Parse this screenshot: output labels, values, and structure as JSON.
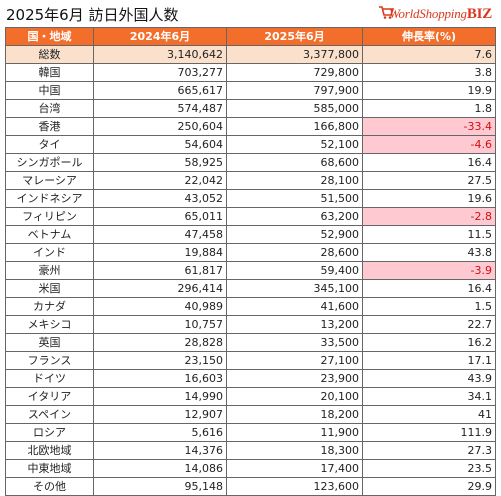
{
  "title": "2025年6月 訪日外国人数",
  "logo": {
    "text_main": "WorldShopping",
    "text_accent": "BIZ"
  },
  "table": {
    "headers": [
      "国・地域",
      "2024年6月",
      "2025年6月",
      "伸長率(%)"
    ],
    "rows": [
      {
        "name": "総数",
        "y2024": "3,140,642",
        "y2025": "3,377,800",
        "growth": "7.6",
        "negative": false,
        "total": true
      },
      {
        "name": "韓国",
        "y2024": "703,277",
        "y2025": "729,800",
        "growth": "3.8",
        "negative": false
      },
      {
        "name": "中国",
        "y2024": "665,617",
        "y2025": "797,900",
        "growth": "19.9",
        "negative": false
      },
      {
        "name": "台湾",
        "y2024": "574,487",
        "y2025": "585,000",
        "growth": "1.8",
        "negative": false
      },
      {
        "name": "香港",
        "y2024": "250,604",
        "y2025": "166,800",
        "growth": "-33.4",
        "negative": true
      },
      {
        "name": "タイ",
        "y2024": "54,604",
        "y2025": "52,100",
        "growth": "-4.6",
        "negative": true
      },
      {
        "name": "シンガポール",
        "y2024": "58,925",
        "y2025": "68,600",
        "growth": "16.4",
        "negative": false
      },
      {
        "name": "マレーシア",
        "y2024": "22,042",
        "y2025": "28,100",
        "growth": "27.5",
        "negative": false
      },
      {
        "name": "インドネシア",
        "y2024": "43,052",
        "y2025": "51,500",
        "growth": "19.6",
        "negative": false
      },
      {
        "name": "フィリピン",
        "y2024": "65,011",
        "y2025": "63,200",
        "growth": "-2.8",
        "negative": true
      },
      {
        "name": "ベトナム",
        "y2024": "47,458",
        "y2025": "52,900",
        "growth": "11.5",
        "negative": false
      },
      {
        "name": "インド",
        "y2024": "19,884",
        "y2025": "28,600",
        "growth": "43.8",
        "negative": false
      },
      {
        "name": "豪州",
        "y2024": "61,817",
        "y2025": "59,400",
        "growth": "-3.9",
        "negative": true
      },
      {
        "name": "米国",
        "y2024": "296,414",
        "y2025": "345,100",
        "growth": "16.4",
        "negative": false
      },
      {
        "name": "カナダ",
        "y2024": "40,989",
        "y2025": "41,600",
        "growth": "1.5",
        "negative": false
      },
      {
        "name": "メキシコ",
        "y2024": "10,757",
        "y2025": "13,200",
        "growth": "22.7",
        "negative": false
      },
      {
        "name": "英国",
        "y2024": "28,828",
        "y2025": "33,500",
        "growth": "16.2",
        "negative": false
      },
      {
        "name": "フランス",
        "y2024": "23,150",
        "y2025": "27,100",
        "growth": "17.1",
        "negative": false
      },
      {
        "name": "ドイツ",
        "y2024": "16,603",
        "y2025": "23,900",
        "growth": "43.9",
        "negative": false
      },
      {
        "name": "イタリア",
        "y2024": "14,990",
        "y2025": "20,100",
        "growth": "34.1",
        "negative": false
      },
      {
        "name": "スペイン",
        "y2024": "12,907",
        "y2025": "18,200",
        "growth": "41",
        "negative": false
      },
      {
        "name": "ロシア",
        "y2024": "5,616",
        "y2025": "11,900",
        "growth": "111.9",
        "negative": false
      },
      {
        "name": "北欧地域",
        "y2024": "14,376",
        "y2025": "18,300",
        "growth": "27.3",
        "negative": false
      },
      {
        "name": "中東地域",
        "y2024": "14,086",
        "y2025": "17,400",
        "growth": "23.5",
        "negative": false
      },
      {
        "name": "その他",
        "y2024": "95,148",
        "y2025": "123,600",
        "growth": "29.9",
        "negative": false
      }
    ]
  },
  "colors": {
    "header_bg": "#f36e2a",
    "total_bg": "#fbe0cc",
    "negative_bg": "#ffc9d2",
    "negative_text": "#d01010",
    "logo": "#d9381e"
  }
}
